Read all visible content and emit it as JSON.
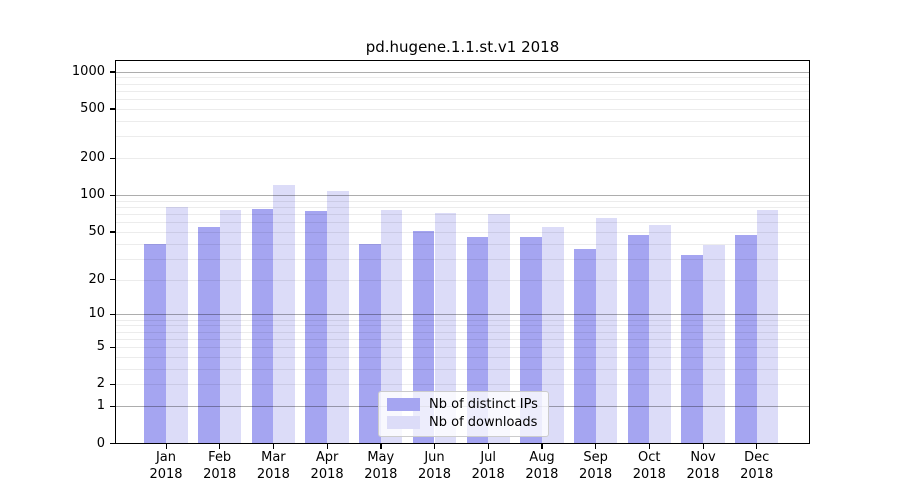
{
  "title": "pd.hugene.1.1.st.v1 2018",
  "chart_data": {
    "type": "bar",
    "title": "pd.hugene.1.1.st.v1 2018",
    "categories": [
      "Jan",
      "Feb",
      "Mar",
      "Apr",
      "May",
      "Jun",
      "Jul",
      "Aug",
      "Sep",
      "Oct",
      "Nov",
      "Dec"
    ],
    "x_year": "2018",
    "series": [
      {
        "name": "Nb of distinct IPs",
        "color": "#a5a5f1",
        "values": [
          40,
          55,
          77,
          74,
          40,
          51,
          45,
          45,
          36,
          47,
          32,
          47
        ]
      },
      {
        "name": "Nb of downloads",
        "color": "#dcdcf8",
        "values": [
          80,
          76,
          122,
          108,
          76,
          71,
          70,
          55,
          65,
          57,
          39,
          75
        ]
      }
    ],
    "y_axis": {
      "scale": "log10(value+1)",
      "tick_labels": [
        1000,
        500,
        200,
        100,
        50,
        20,
        10,
        5,
        2,
        1,
        0
      ],
      "ylim_top": 1070
    },
    "grid": {
      "major_at": [
        1,
        10,
        100,
        1000
      ],
      "minor_per_decade": [
        2,
        3,
        4,
        5,
        6,
        7,
        8,
        9
      ]
    },
    "legend": {
      "position": "bottom-center"
    }
  }
}
